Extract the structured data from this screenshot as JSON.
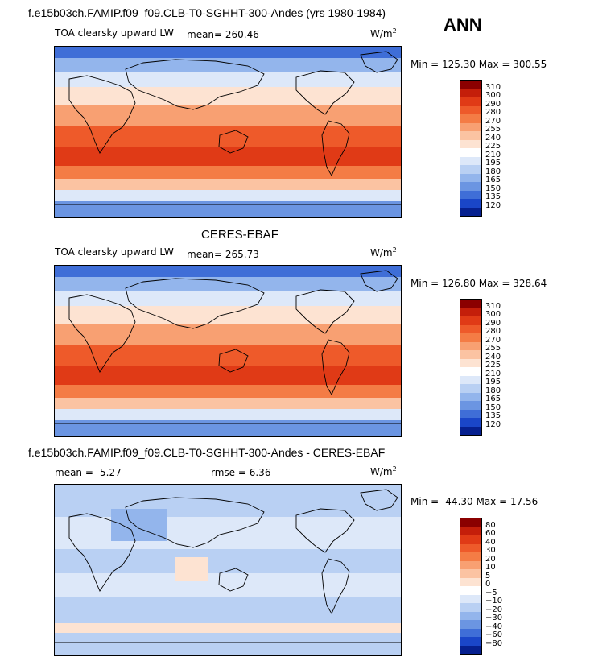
{
  "header": {
    "season": "ANN"
  },
  "panels": [
    {
      "title": "f.e15b03ch.FAMIP.f09_f09.CLB-T0-SGHHT-300-Andes (yrs 1980-1984)",
      "left_label": "TOA clearsky upward LW",
      "stat1": "mean=  260.46",
      "stat2": "",
      "units": "W/m",
      "units_sup": "2",
      "minmax": "Min = 125.30 Max = 300.55",
      "levels": [
        "310",
        "300",
        "290",
        "280",
        "270",
        "255",
        "240",
        "225",
        "210",
        "195",
        "180",
        "165",
        "150",
        "135",
        "120"
      ],
      "colors": [
        "#8b0000",
        "#c41e0a",
        "#e03a16",
        "#ee5a2a",
        "#f47c45",
        "#f8a072",
        "#fbc3a2",
        "#fde3d2",
        "#ffffff",
        "#dde8f9",
        "#b9d0f3",
        "#93b5ec",
        "#6b95e2",
        "#3f6ed7",
        "#1a46c8",
        "#06208f"
      ]
    },
    {
      "title": "CERES-EBAF",
      "left_label": "TOA clearsky upward LW",
      "stat1": "mean=  265.73",
      "stat2": "",
      "units": "W/m",
      "units_sup": "2",
      "minmax": "Min = 126.80 Max = 328.64",
      "levels": [
        "310",
        "300",
        "290",
        "280",
        "270",
        "255",
        "240",
        "225",
        "210",
        "195",
        "180",
        "165",
        "150",
        "135",
        "120"
      ],
      "colors": [
        "#8b0000",
        "#c41e0a",
        "#e03a16",
        "#ee5a2a",
        "#f47c45",
        "#f8a072",
        "#fbc3a2",
        "#fde3d2",
        "#ffffff",
        "#dde8f9",
        "#b9d0f3",
        "#93b5ec",
        "#6b95e2",
        "#3f6ed7",
        "#1a46c8",
        "#06208f"
      ]
    },
    {
      "title": "f.e15b03ch.FAMIP.f09_f09.CLB-T0-SGHHT-300-Andes - CERES-EBAF",
      "left_label": "",
      "stat1": "mean =   -5.27",
      "stat2": "rmse =    6.36",
      "units": "W/m",
      "units_sup": "2",
      "minmax": "Min = -44.30 Max =  17.56",
      "levels": [
        "80",
        "60",
        "40",
        "30",
        "20",
        "10",
        "5",
        "0",
        "−5",
        "−10",
        "−20",
        "−30",
        "−40",
        "−60",
        "−80"
      ],
      "colors": [
        "#8b0000",
        "#c41e0a",
        "#e03a16",
        "#ee5a2a",
        "#f47c45",
        "#f8a072",
        "#fbc3a2",
        "#fde3d2",
        "#ffffff",
        "#dde8f9",
        "#b9d0f3",
        "#93b5ec",
        "#6b95e2",
        "#3f6ed7",
        "#1a46c8",
        "#06208f"
      ]
    }
  ]
}
